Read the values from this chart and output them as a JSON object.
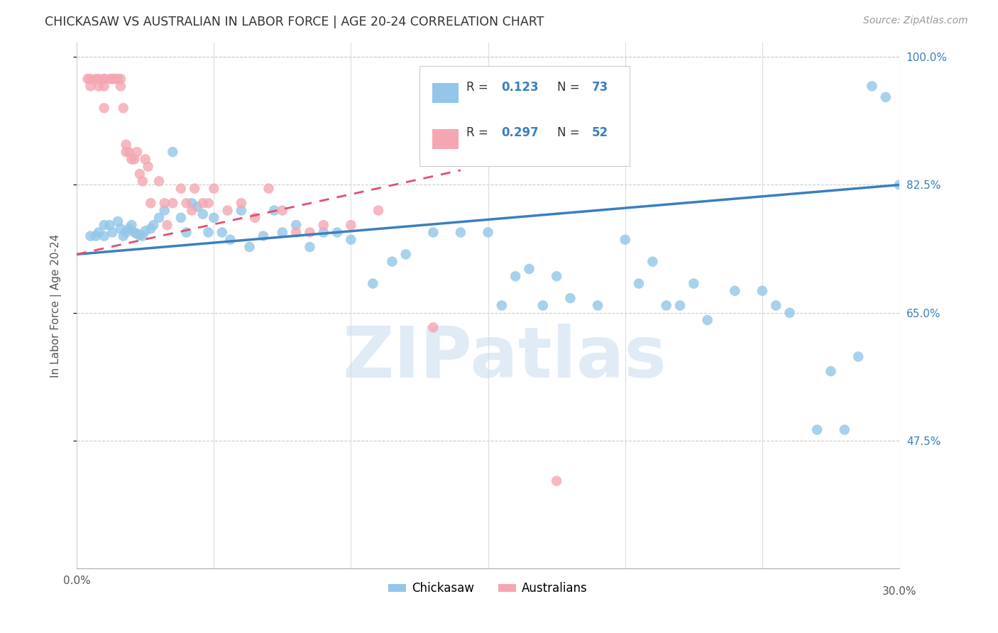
{
  "title": "CHICKASAW VS AUSTRALIAN IN LABOR FORCE | AGE 20-24 CORRELATION CHART",
  "source": "Source: ZipAtlas.com",
  "ylabel": "In Labor Force | Age 20-24",
  "xlim": [
    0.0,
    0.3
  ],
  "ylim": [
    0.3,
    1.02
  ],
  "ytick_right_labels": [
    "100.0%",
    "82.5%",
    "65.0%",
    "47.5%"
  ],
  "ytick_right_values": [
    1.0,
    0.825,
    0.65,
    0.475
  ],
  "blue_color": "#93C6E8",
  "pink_color": "#F4A7B2",
  "trendline_blue": "#3A7FC1",
  "trendline_pink": "#E05070",
  "watermark": "ZIPatlas",
  "watermark_color": "#C8DCF0",
  "legend_label1": "Chickasaw",
  "legend_label2": "Australians",
  "blue_x": [
    0.005,
    0.007,
    0.008,
    0.01,
    0.01,
    0.012,
    0.013,
    0.015,
    0.016,
    0.017,
    0.018,
    0.019,
    0.02,
    0.021,
    0.022,
    0.023,
    0.024,
    0.025,
    0.027,
    0.028,
    0.03,
    0.032,
    0.035,
    0.038,
    0.04,
    0.042,
    0.044,
    0.046,
    0.048,
    0.05,
    0.053,
    0.056,
    0.06,
    0.063,
    0.068,
    0.072,
    0.075,
    0.08,
    0.085,
    0.09,
    0.095,
    0.1,
    0.108,
    0.115,
    0.12,
    0.13,
    0.14,
    0.15,
    0.155,
    0.16,
    0.165,
    0.17,
    0.175,
    0.18,
    0.19,
    0.2,
    0.205,
    0.21,
    0.215,
    0.22,
    0.225,
    0.23,
    0.24,
    0.25,
    0.255,
    0.26,
    0.27,
    0.275,
    0.28,
    0.285,
    0.29,
    0.295,
    0.3
  ],
  "blue_y": [
    0.755,
    0.755,
    0.76,
    0.755,
    0.77,
    0.77,
    0.76,
    0.775,
    0.765,
    0.755,
    0.76,
    0.765,
    0.77,
    0.76,
    0.758,
    0.756,
    0.755,
    0.762,
    0.765,
    0.77,
    0.78,
    0.79,
    0.87,
    0.78,
    0.76,
    0.8,
    0.795,
    0.785,
    0.76,
    0.78,
    0.76,
    0.75,
    0.79,
    0.74,
    0.755,
    0.79,
    0.76,
    0.77,
    0.74,
    0.76,
    0.76,
    0.75,
    0.69,
    0.72,
    0.73,
    0.76,
    0.76,
    0.76,
    0.66,
    0.7,
    0.71,
    0.66,
    0.7,
    0.67,
    0.66,
    0.75,
    0.69,
    0.72,
    0.66,
    0.66,
    0.69,
    0.64,
    0.68,
    0.68,
    0.66,
    0.65,
    0.49,
    0.57,
    0.49,
    0.59,
    0.96,
    0.945,
    0.825
  ],
  "pink_x": [
    0.004,
    0.005,
    0.005,
    0.007,
    0.008,
    0.008,
    0.01,
    0.01,
    0.01,
    0.01,
    0.012,
    0.013,
    0.013,
    0.014,
    0.015,
    0.016,
    0.016,
    0.017,
    0.018,
    0.018,
    0.019,
    0.02,
    0.021,
    0.022,
    0.023,
    0.024,
    0.025,
    0.026,
    0.027,
    0.03,
    0.032,
    0.033,
    0.035,
    0.038,
    0.04,
    0.042,
    0.043,
    0.046,
    0.048,
    0.05,
    0.055,
    0.06,
    0.065,
    0.07,
    0.075,
    0.08,
    0.085,
    0.09,
    0.1,
    0.11,
    0.13,
    0.175
  ],
  "pink_y": [
    0.97,
    0.97,
    0.96,
    0.97,
    0.97,
    0.96,
    0.97,
    0.97,
    0.96,
    0.93,
    0.97,
    0.97,
    0.97,
    0.97,
    0.97,
    0.97,
    0.96,
    0.93,
    0.87,
    0.88,
    0.87,
    0.86,
    0.86,
    0.87,
    0.84,
    0.83,
    0.86,
    0.85,
    0.8,
    0.83,
    0.8,
    0.77,
    0.8,
    0.82,
    0.8,
    0.79,
    0.82,
    0.8,
    0.8,
    0.82,
    0.79,
    0.8,
    0.78,
    0.82,
    0.79,
    0.76,
    0.76,
    0.77,
    0.77,
    0.79,
    0.63,
    0.42
  ]
}
